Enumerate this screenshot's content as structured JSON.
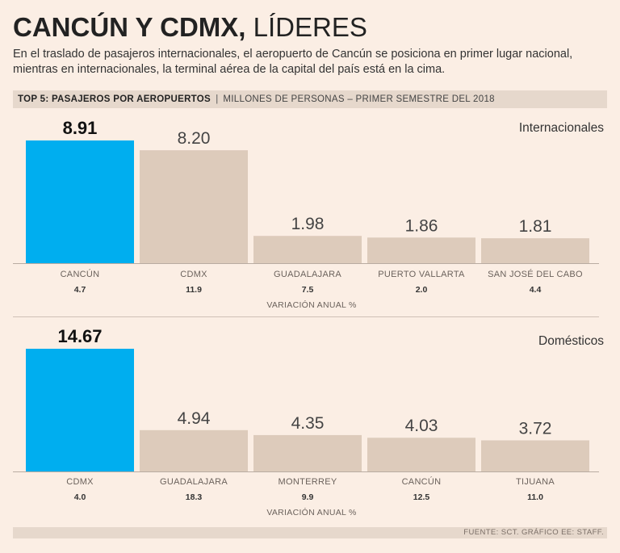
{
  "title": {
    "bold": "CANCÚN Y CDMX,",
    "light": "LÍDERES"
  },
  "subtitle": "En el traslado de pasajeros internacionales, el aeropuerto de Cancún se posiciona en primer lugar nacional, mientras en internacionales, la terminal aérea de la capital del país está en la cima.",
  "header": {
    "bold": "TOP 5: PASAJEROS POR AEROPUERTOS",
    "separator": "|",
    "unit": "MILLONES DE PERSONAS – PRIMER SEMESTRE DEL 2018"
  },
  "colors": {
    "highlight": "#00aeef",
    "bar": "#ddcbbb",
    "axis": "#b9aca2"
  },
  "chart_data": [
    {
      "type": "bar",
      "title": "Internacionales",
      "categories": [
        "CANCÚN",
        "CDMX",
        "GUADALAJARA",
        "PUERTO VALLARTA",
        "SAN JOSÉ DEL CABO"
      ],
      "values": [
        8.91,
        8.2,
        1.98,
        1.86,
        1.81
      ],
      "value_labels": [
        "8.91",
        "8.20",
        "1.98",
        "1.86",
        "1.81"
      ],
      "variation": [
        "4.7",
        "11.9",
        "7.5",
        "2.0",
        "4.4"
      ],
      "variation_label": "VARIACIÓN ANUAL %",
      "highlight_index": 0,
      "ylim": [
        0,
        8.91
      ]
    },
    {
      "type": "bar",
      "title": "Domésticos",
      "categories": [
        "CDMX",
        "GUADALAJARA",
        "MONTERREY",
        "CANCÚN",
        "TIJUANA"
      ],
      "values": [
        14.67,
        4.94,
        4.35,
        4.03,
        3.72
      ],
      "value_labels": [
        "14.67",
        "4.94",
        "4.35",
        "4.03",
        "3.72"
      ],
      "variation": [
        "4.0",
        "18.3",
        "9.9",
        "12.5",
        "11.0"
      ],
      "variation_label": "VARIACIÓN ANUAL %",
      "highlight_index": 0,
      "ylim": [
        0,
        14.67
      ]
    }
  ],
  "footer": "FUENTE: SCT. GRÁFICO EE: STAFF."
}
